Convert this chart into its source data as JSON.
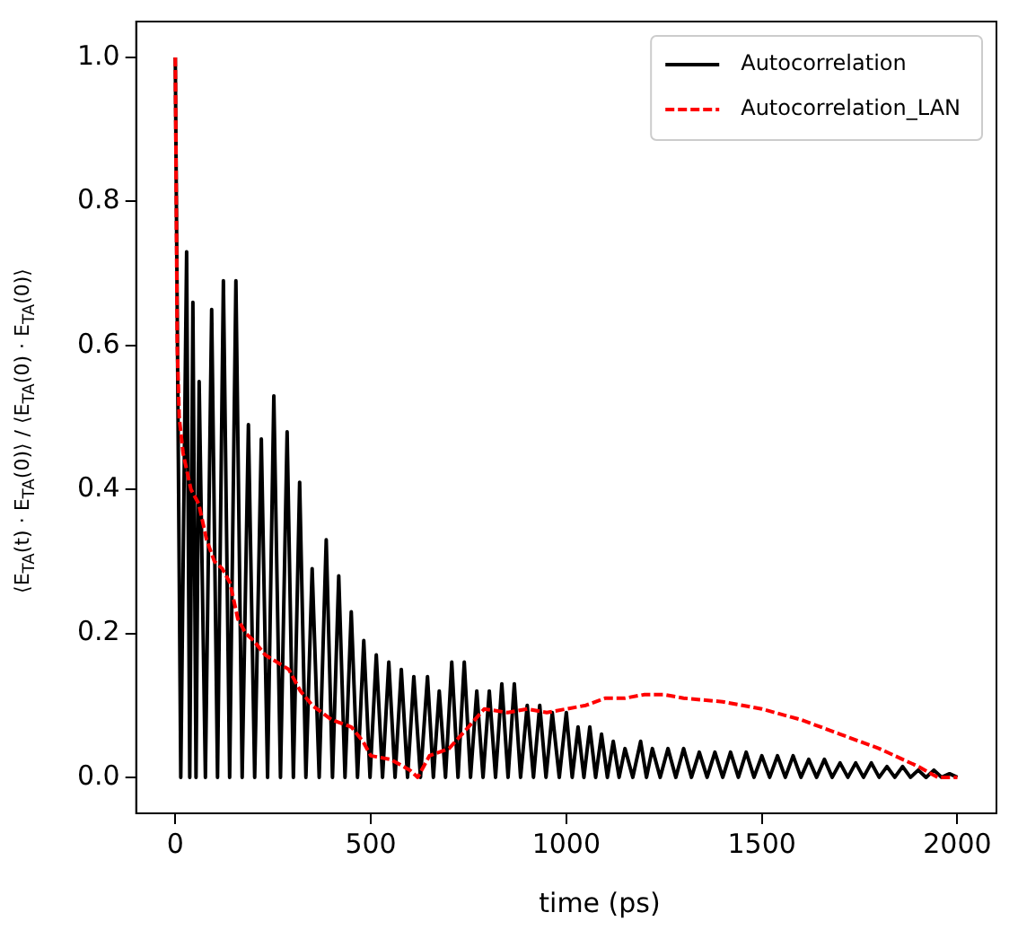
{
  "chart_data": {
    "type": "line",
    "xlabel": "time (ps)",
    "ylabel": "⟨E$_{TA}$(t) · E$_{TA}$(0)⟩ / ⟨E$_{TA}$(0) · E$_{TA}$(0)⟩",
    "xlim": [
      -100,
      2100
    ],
    "ylim": [
      -0.05,
      1.05
    ],
    "xticks": [
      0,
      500,
      1000,
      1500,
      2000
    ],
    "yticks": [
      {
        "value": 0,
        "label": "0.0"
      },
      {
        "value": 0.2,
        "label": "0.2"
      },
      {
        "value": 0.4,
        "label": "0.4"
      },
      {
        "value": 0.6,
        "label": "0.6"
      },
      {
        "value": 0.8,
        "label": "0.8"
      },
      {
        "value": 1,
        "label": "1.0"
      }
    ],
    "grid": false,
    "legend": "top right",
    "marker": "none",
    "series": [
      {
        "name": "Autocorrelation",
        "color": "#000000",
        "line_style": "solid",
        "x": [
          0,
          14,
          29,
          37,
          45,
          53,
          61,
          77,
          93,
          108,
          123,
          139,
          155,
          171,
          187,
          203,
          220,
          236,
          252,
          269,
          286,
          302,
          318,
          334,
          350,
          368,
          386,
          402,
          418,
          434,
          450,
          466,
          482,
          498,
          514,
          530,
          546,
          562,
          578,
          594,
          610,
          627,
          645,
          660,
          675,
          691,
          707,
          723,
          739,
          755,
          771,
          787,
          803,
          819,
          835,
          851,
          867,
          883,
          900,
          916,
          932,
          948,
          964,
          982,
          1000,
          1015,
          1030,
          1045,
          1060,
          1075,
          1090,
          1105,
          1120,
          1135,
          1150,
          1170,
          1190,
          1205,
          1220,
          1240,
          1260,
          1280,
          1300,
          1320,
          1340,
          1360,
          1380,
          1400,
          1420,
          1440,
          1460,
          1480,
          1500,
          1520,
          1540,
          1560,
          1580,
          1600,
          1620,
          1640,
          1660,
          1680,
          1700,
          1720,
          1740,
          1760,
          1780,
          1800,
          1820,
          1840,
          1860,
          1880,
          1900,
          1920,
          1940,
          1960,
          1980,
          2000
        ],
        "values": [
          1.0,
          0,
          0.73,
          0,
          0.66,
          0,
          0.55,
          0,
          0.65,
          0,
          0.69,
          0,
          0.69,
          0,
          0.49,
          0,
          0.47,
          0,
          0.53,
          0,
          0.48,
          0,
          0.41,
          0,
          0.29,
          0,
          0.33,
          0,
          0.28,
          0,
          0.23,
          0,
          0.19,
          0,
          0.17,
          0,
          0.16,
          0,
          0.15,
          0,
          0.14,
          0,
          0.14,
          0,
          0.12,
          0,
          0.16,
          0,
          0.16,
          0,
          0.12,
          0,
          0.12,
          0,
          0.13,
          0,
          0.13,
          0,
          0.1,
          0,
          0.1,
          0,
          0.09,
          0,
          0.09,
          0,
          0.07,
          0,
          0.07,
          0,
          0.06,
          0,
          0.05,
          0,
          0.04,
          0,
          0.05,
          0,
          0.04,
          0,
          0.04,
          0,
          0.04,
          0,
          0.035,
          0,
          0.035,
          0,
          0.035,
          0,
          0.035,
          0,
          0.03,
          0,
          0.03,
          0,
          0.03,
          0,
          0.025,
          0,
          0.025,
          0,
          0.02,
          0,
          0.02,
          0,
          0.02,
          0,
          0.015,
          0,
          0.015,
          0,
          0.01,
          0,
          0.01,
          0,
          0.005,
          0
        ]
      },
      {
        "name": "Autocorrelation_LAN",
        "color": "#ff0000",
        "line_style": "dashed",
        "x": [
          0,
          5,
          10,
          20,
          40,
          60,
          80,
          100,
          120,
          140,
          160,
          180,
          200,
          230,
          260,
          290,
          320,
          350,
          400,
          450,
          480,
          500,
          550,
          600,
          620,
          650,
          700,
          750,
          790,
          850,
          900,
          950,
          1000,
          1050,
          1100,
          1150,
          1200,
          1250,
          1300,
          1400,
          1500,
          1600,
          1700,
          1800,
          1900,
          1950,
          2000
        ],
        "values": [
          1.0,
          0.6,
          0.5,
          0.45,
          0.4,
          0.38,
          0.33,
          0.3,
          0.29,
          0.27,
          0.22,
          0.2,
          0.19,
          0.17,
          0.16,
          0.15,
          0.12,
          0.1,
          0.08,
          0.07,
          0.05,
          0.03,
          0.025,
          0.01,
          0.0,
          0.03,
          0.04,
          0.07,
          0.095,
          0.09,
          0.095,
          0.09,
          0.095,
          0.1,
          0.11,
          0.11,
          0.115,
          0.115,
          0.11,
          0.105,
          0.095,
          0.08,
          0.06,
          0.04,
          0.015,
          0.0,
          0.0
        ]
      }
    ]
  }
}
